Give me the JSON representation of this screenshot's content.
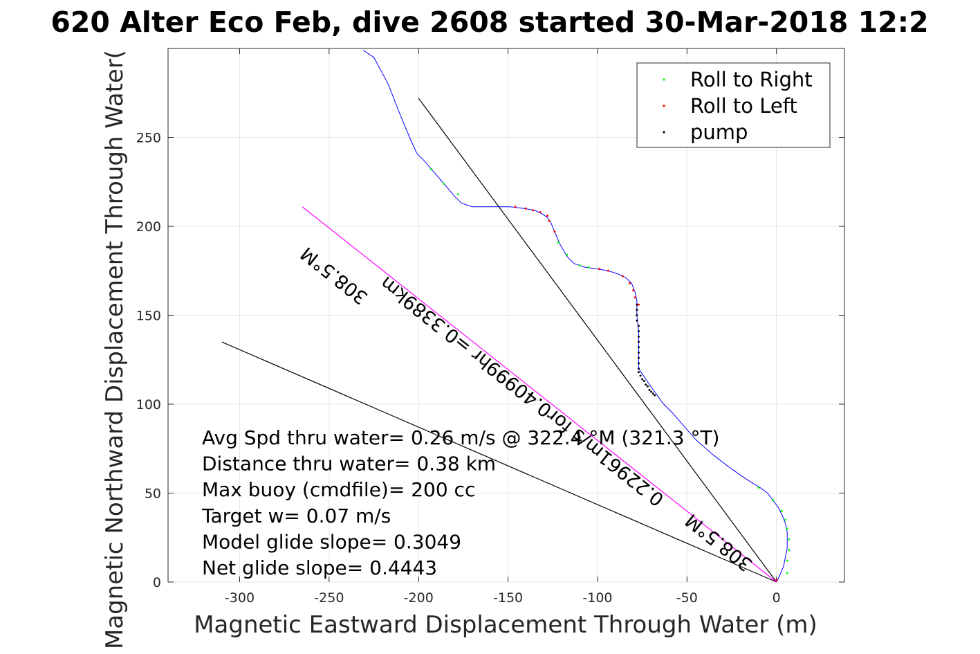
{
  "chart_data": {
    "type": "line",
    "title": "620 Alter Eco Feb, dive 2608 started 30-Mar-2018 12:2",
    "xlabel": "Magnetic Eastward Displacement Through Water (m)",
    "ylabel": "Magnetic Northward Displacement Through Water(",
    "xlim": [
      -340,
      38
    ],
    "ylim": [
      0,
      300
    ],
    "xticks": [
      -300,
      -250,
      -200,
      -150,
      -100,
      -50,
      0
    ],
    "yticks": [
      0,
      50,
      100,
      150,
      200,
      250
    ],
    "grid": true,
    "legend_position": "top-right",
    "legend": [
      {
        "label": "Roll to Right",
        "color": "#00ff00"
      },
      {
        "label": "Roll to Left",
        "color": "#ff0000"
      },
      {
        "label": "pump",
        "color": "#000000"
      }
    ],
    "track": {
      "color": "#0000ff",
      "points": [
        [
          0,
          0
        ],
        [
          2,
          4
        ],
        [
          4,
          9
        ],
        [
          5,
          14
        ],
        [
          6,
          19
        ],
        [
          6,
          24
        ],
        [
          6,
          28
        ],
        [
          5,
          33
        ],
        [
          3,
          38
        ],
        [
          1,
          42
        ],
        [
          -2,
          46
        ],
        [
          -5,
          50
        ],
        [
          -9,
          53
        ],
        [
          -14,
          56
        ],
        [
          -20,
          60
        ],
        [
          -27,
          65
        ],
        [
          -36,
          72
        ],
        [
          -45,
          80
        ],
        [
          -52,
          88
        ],
        [
          -58,
          95
        ],
        [
          -63,
          100
        ],
        [
          -66,
          104
        ],
        [
          -68,
          107
        ],
        [
          -71,
          111
        ],
        [
          -73,
          114
        ],
        [
          -75,
          117
        ],
        [
          -77,
          120
        ],
        [
          -77,
          124
        ],
        [
          -77,
          132
        ],
        [
          -77,
          140
        ],
        [
          -78,
          150
        ],
        [
          -78,
          158
        ],
        [
          -79,
          163
        ],
        [
          -81,
          168
        ],
        [
          -84,
          171
        ],
        [
          -88,
          173
        ],
        [
          -94,
          175
        ],
        [
          -100,
          176
        ],
        [
          -107,
          177
        ],
        [
          -113,
          179
        ],
        [
          -117,
          183
        ],
        [
          -121,
          190
        ],
        [
          -124,
          197
        ],
        [
          -126,
          202
        ],
        [
          -128,
          205
        ],
        [
          -131,
          207
        ],
        [
          -135,
          209
        ],
        [
          -141,
          210
        ],
        [
          -149,
          211
        ],
        [
          -160,
          211
        ],
        [
          -170,
          211
        ],
        [
          -176,
          213
        ],
        [
          -180,
          217
        ],
        [
          -185,
          223
        ],
        [
          -191,
          230
        ],
        [
          -197,
          237
        ],
        [
          -201,
          241
        ],
        [
          -205,
          250
        ],
        [
          -210,
          262
        ],
        [
          -217,
          280
        ],
        [
          -225,
          295
        ],
        [
          -231,
          299
        ]
      ]
    },
    "roll_right_points": [
      [
        6,
        5
      ],
      [
        6,
        12
      ],
      [
        7,
        18
      ],
      [
        7,
        24
      ],
      [
        6,
        30
      ],
      [
        5,
        35
      ],
      [
        3,
        40
      ],
      [
        -2,
        46
      ],
      [
        -10,
        53
      ],
      [
        -178,
        218
      ],
      [
        -186,
        224
      ],
      [
        -193,
        232
      ],
      [
        -110,
        178
      ],
      [
        -117,
        184
      ],
      [
        -122,
        191
      ],
      [
        -105,
        177
      ]
    ],
    "roll_left_points": [
      [
        0,
        1
      ],
      [
        -128,
        206
      ],
      [
        -132,
        208
      ],
      [
        -136,
        209
      ],
      [
        -140,
        210
      ],
      [
        -146,
        211
      ],
      [
        -124,
        197
      ],
      [
        -127,
        203
      ],
      [
        -80,
        164
      ],
      [
        -82,
        168
      ],
      [
        -86,
        172
      ],
      [
        -94,
        175
      ],
      [
        -99,
        176
      ],
      [
        -79,
        160
      ],
      [
        -77,
        156
      ]
    ],
    "pump_points": [
      [
        -77,
        120
      ],
      [
        -77,
        123
      ],
      [
        -77,
        126
      ],
      [
        -77,
        129
      ],
      [
        -77,
        132
      ],
      [
        -77,
        135
      ],
      [
        -77,
        138
      ],
      [
        -77,
        141
      ],
      [
        -77,
        144
      ],
      [
        -78,
        147
      ],
      [
        -78,
        150
      ],
      [
        -78,
        153
      ],
      [
        -78,
        156
      ],
      [
        -77,
        118
      ],
      [
        -76,
        116
      ],
      [
        -75,
        114
      ],
      [
        -74,
        113
      ],
      [
        -73,
        111
      ],
      [
        -72,
        110
      ],
      [
        -71,
        108
      ],
      [
        -70,
        107
      ],
      [
        -69,
        106
      ],
      [
        -68,
        105
      ]
    ],
    "reference_lines": [
      {
        "name": "black-line-upper",
        "color": "#000000",
        "points": [
          [
            0,
            0
          ],
          [
            -200,
            272
          ]
        ]
      },
      {
        "name": "black-line-lower",
        "color": "#000000",
        "points": [
          [
            0,
            0
          ],
          [
            -310,
            135
          ]
        ]
      },
      {
        "name": "magenta-line",
        "color": "#ff00ff",
        "points": [
          [
            0,
            0
          ],
          [
            -265,
            211
          ]
        ]
      }
    ],
    "rotated_labels": [
      {
        "text": "308.5°M",
        "at": [
          -245,
          175
        ],
        "angle": 218.5
      },
      {
        "text": "0.22961m/s for0.40999hr =0.3389km",
        "at": [
          -140,
          110
        ],
        "angle": 218.5
      },
      {
        "text": "308.5°M",
        "at": [
          -30,
          25
        ],
        "angle": 218.5
      }
    ],
    "annotations": [
      "Avg Spd thru water=  0.26 m/s @ 322.4 °M (321.3 °T)",
      "Distance thru water=  0.38 km",
      "Max buoy (cmdfile)= 200 cc",
      "Target w= 0.07 m/s",
      "Model glide slope= 0.3049",
      "Net glide slope= 0.4443"
    ]
  }
}
